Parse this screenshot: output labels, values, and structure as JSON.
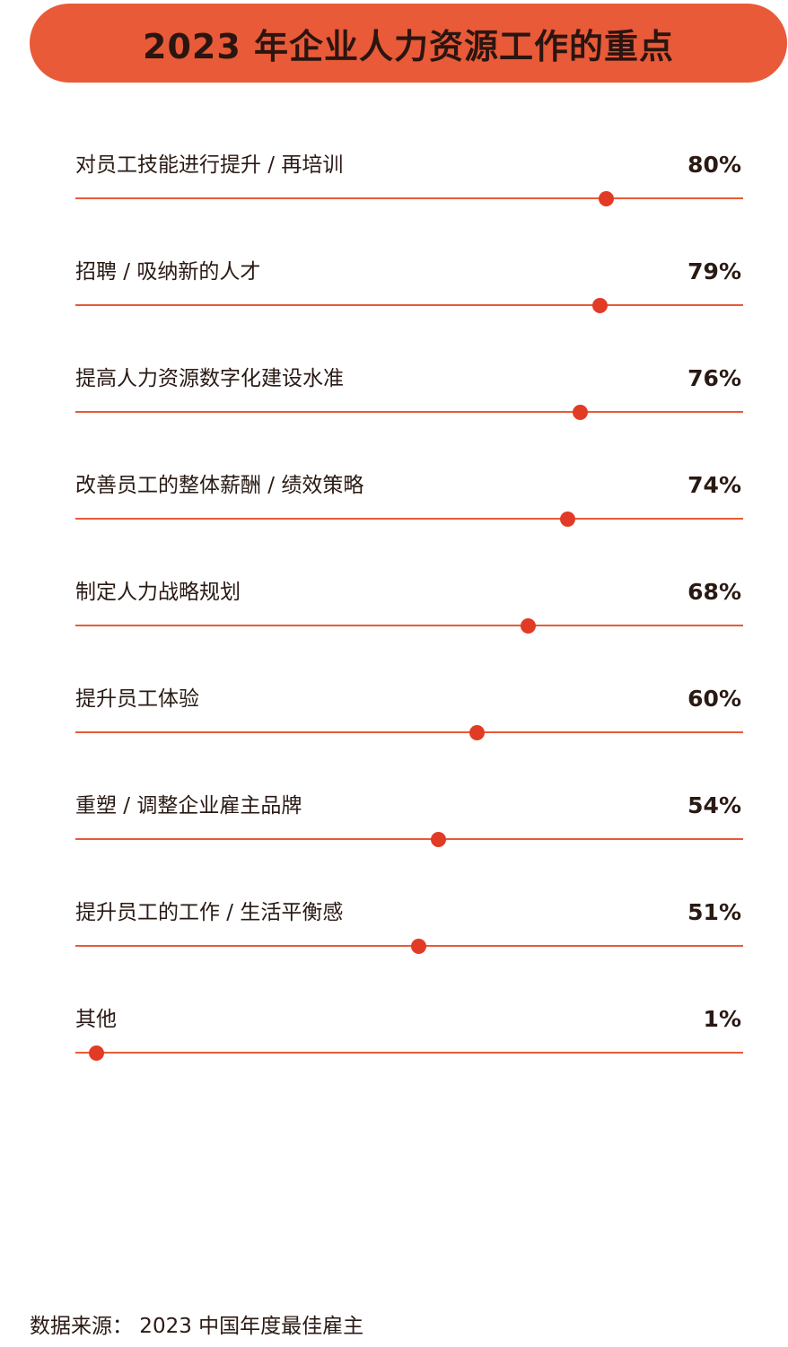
{
  "title": "2023 年企业人力资源工作的重点",
  "source": "数据来源： 2023 中国年度最佳雇主",
  "colors": {
    "accent": "#e85a38",
    "dot": "#e23b25",
    "text": "#2a1a14"
  },
  "chart_data": {
    "type": "dot-bar",
    "title": "2023 年企业人力资源工作的重点",
    "value_unit": "%",
    "xlim": [
      0,
      100
    ],
    "grid": false,
    "items": [
      {
        "label": "对员工技能进行提升 / 再培训",
        "value": 80,
        "display": "80%"
      },
      {
        "label": "招聘 / 吸纳新的人才",
        "value": 79,
        "display": "79%"
      },
      {
        "label": "提高人力资源数字化建设水准",
        "value": 76,
        "display": "76%"
      },
      {
        "label": "改善员工的整体薪酬 / 绩效策略",
        "value": 74,
        "display": "74%"
      },
      {
        "label": "制定人力战略规划",
        "value": 68,
        "display": "68%"
      },
      {
        "label": "提升员工体验",
        "value": 60,
        "display": "60%"
      },
      {
        "label": "重塑 / 调整企业雇主品牌",
        "value": 54,
        "display": "54%"
      },
      {
        "label": "提升员工的工作 / 生活平衡感",
        "value": 51,
        "display": "51%"
      },
      {
        "label": "其他",
        "value": 1,
        "display": "1%"
      }
    ]
  }
}
